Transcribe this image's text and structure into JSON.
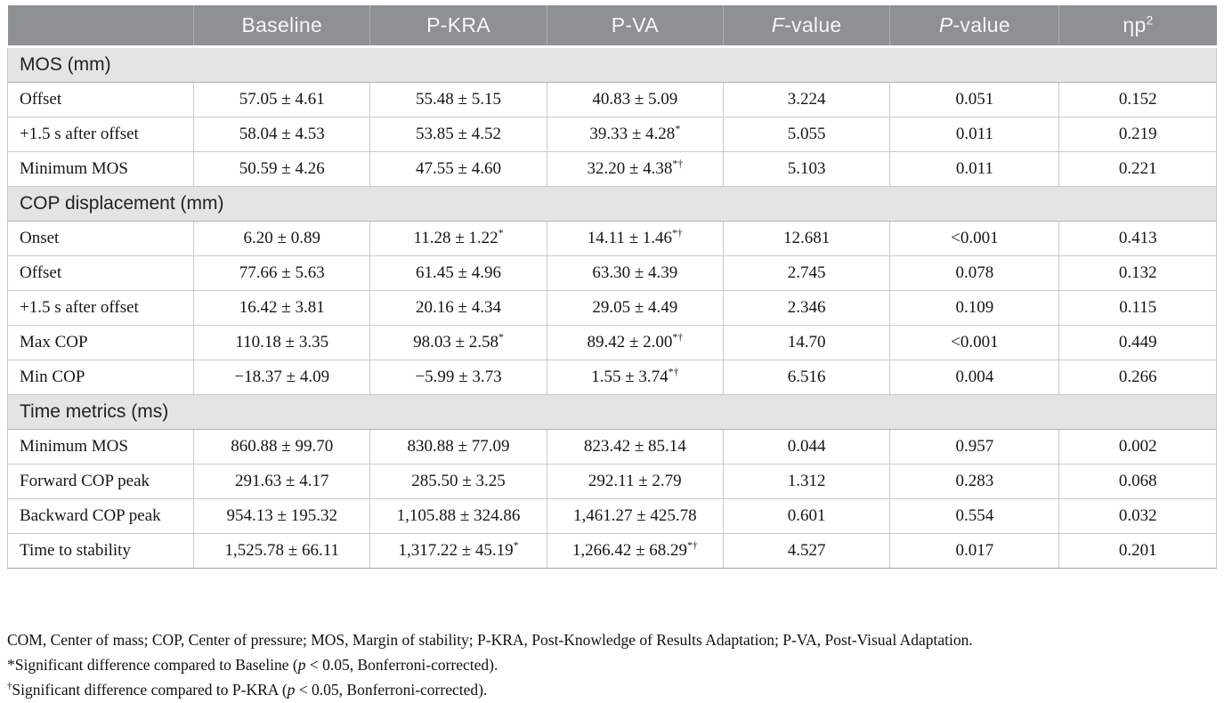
{
  "table": {
    "columns": [
      {
        "label": ""
      },
      {
        "label": "Baseline"
      },
      {
        "label": "P-KRA"
      },
      {
        "label": "P-VA"
      },
      {
        "it": "F",
        "label": "-value"
      },
      {
        "it": "P",
        "label": "-value"
      },
      {
        "label": "ηp",
        "sup": "2"
      }
    ],
    "sections": [
      {
        "title": "MOS (mm)",
        "rows": [
          {
            "label": "Offset",
            "cells": [
              {
                "t": "57.05 ± 4.61"
              },
              {
                "t": "55.48 ± 5.15"
              },
              {
                "t": "40.83 ± 5.09"
              },
              {
                "t": "3.224"
              },
              {
                "t": "0.051"
              },
              {
                "t": "0.152"
              }
            ]
          },
          {
            "label": "+1.5 s after offset",
            "cells": [
              {
                "t": "58.04 ± 4.53"
              },
              {
                "t": "53.85 ± 4.52"
              },
              {
                "t": "39.33 ± 4.28",
                "sup": "*"
              },
              {
                "t": "5.055"
              },
              {
                "t": "0.011"
              },
              {
                "t": "0.219"
              }
            ]
          },
          {
            "label": "Minimum MOS",
            "cells": [
              {
                "t": "50.59 ± 4.26"
              },
              {
                "t": "47.55 ± 4.60"
              },
              {
                "t": "32.20 ± 4.38",
                "sup": "*†"
              },
              {
                "t": "5.103"
              },
              {
                "t": "0.011"
              },
              {
                "t": "0.221"
              }
            ]
          }
        ]
      },
      {
        "title": "COP displacement (mm)",
        "rows": [
          {
            "label": "Onset",
            "cells": [
              {
                "t": "6.20 ± 0.89"
              },
              {
                "t": "11.28 ± 1.22",
                "sup": "*"
              },
              {
                "t": "14.11 ± 1.46",
                "sup": "*†"
              },
              {
                "t": "12.681"
              },
              {
                "t": "<0.001"
              },
              {
                "t": "0.413"
              }
            ]
          },
          {
            "label": "Offset",
            "cells": [
              {
                "t": "77.66 ± 5.63"
              },
              {
                "t": "61.45 ± 4.96"
              },
              {
                "t": "63.30 ± 4.39"
              },
              {
                "t": "2.745"
              },
              {
                "t": "0.078"
              },
              {
                "t": "0.132"
              }
            ]
          },
          {
            "label": "+1.5 s after offset",
            "cells": [
              {
                "t": "16.42 ± 3.81"
              },
              {
                "t": "20.16 ± 4.34"
              },
              {
                "t": "29.05 ± 4.49"
              },
              {
                "t": "2.346"
              },
              {
                "t": "0.109"
              },
              {
                "t": "0.115"
              }
            ]
          },
          {
            "label": "Max COP",
            "cells": [
              {
                "t": "110.18 ± 3.35"
              },
              {
                "t": "98.03 ± 2.58",
                "sup": "*"
              },
              {
                "t": "89.42 ± 2.00",
                "sup": "*†"
              },
              {
                "t": "14.70"
              },
              {
                "t": "<0.001"
              },
              {
                "t": "0.449"
              }
            ]
          },
          {
            "label": "Min COP",
            "cells": [
              {
                "t": "−18.37 ± 4.09"
              },
              {
                "t": "−5.99 ± 3.73"
              },
              {
                "t": "1.55 ± 3.74",
                "sup": "*†"
              },
              {
                "t": "6.516"
              },
              {
                "t": "0.004"
              },
              {
                "t": "0.266"
              }
            ]
          }
        ]
      },
      {
        "title": "Time metrics (ms)",
        "rows": [
          {
            "label": "Minimum MOS",
            "cells": [
              {
                "t": "860.88 ± 99.70"
              },
              {
                "t": "830.88 ± 77.09"
              },
              {
                "t": "823.42 ± 85.14"
              },
              {
                "t": "0.044"
              },
              {
                "t": "0.957"
              },
              {
                "t": "0.002"
              }
            ]
          },
          {
            "label": "Forward COP peak",
            "cells": [
              {
                "t": "291.63 ± 4.17"
              },
              {
                "t": "285.50 ± 3.25"
              },
              {
                "t": "292.11 ± 2.79"
              },
              {
                "t": "1.312"
              },
              {
                "t": "0.283"
              },
              {
                "t": "0.068"
              }
            ]
          },
          {
            "label": "Backward COP peak",
            "cells": [
              {
                "t": "954.13 ± 195.32"
              },
              {
                "t": "1,105.88 ± 324.86"
              },
              {
                "t": "1,461.27 ± 425.78"
              },
              {
                "t": "0.601"
              },
              {
                "t": "0.554"
              },
              {
                "t": "0.032"
              }
            ]
          },
          {
            "label": "Time to stability",
            "cells": [
              {
                "t": "1,525.78 ± 66.11"
              },
              {
                "t": "1,317.22 ± 45.19",
                "sup": "*"
              },
              {
                "t": "1,266.42 ± 68.29",
                "sup": "*†"
              },
              {
                "t": "4.527"
              },
              {
                "t": "0.017"
              },
              {
                "t": "0.201"
              }
            ]
          }
        ]
      }
    ],
    "column_widths_pct": [
      15.4,
      14.6,
      14.6,
      14.6,
      13.8,
      14.0,
      13.0
    ]
  },
  "footnotes": [
    {
      "sup": "",
      "pre": "COM, Center of mass; COP, Center of pressure; MOS, Margin of stability; P-KRA, Post-Knowledge of Results Adaptation; P-VA, Post-Visual Adaptation.",
      "italic": "",
      "post": ""
    },
    {
      "sup": "",
      "pre": "*Significant difference compared to Baseline (",
      "italic": "p",
      "post": " < 0.05, Bonferroni-corrected)."
    },
    {
      "sup": "†",
      "pre": "Significant difference compared to P-KRA (",
      "italic": "p",
      "post": " < 0.05, Bonferroni-corrected)."
    }
  ],
  "colors": {
    "header_bg": "#8d9194",
    "header_text": "#f5f6f7",
    "section_bg": "#e3e4e4",
    "cell_border": "#c9cccc"
  }
}
